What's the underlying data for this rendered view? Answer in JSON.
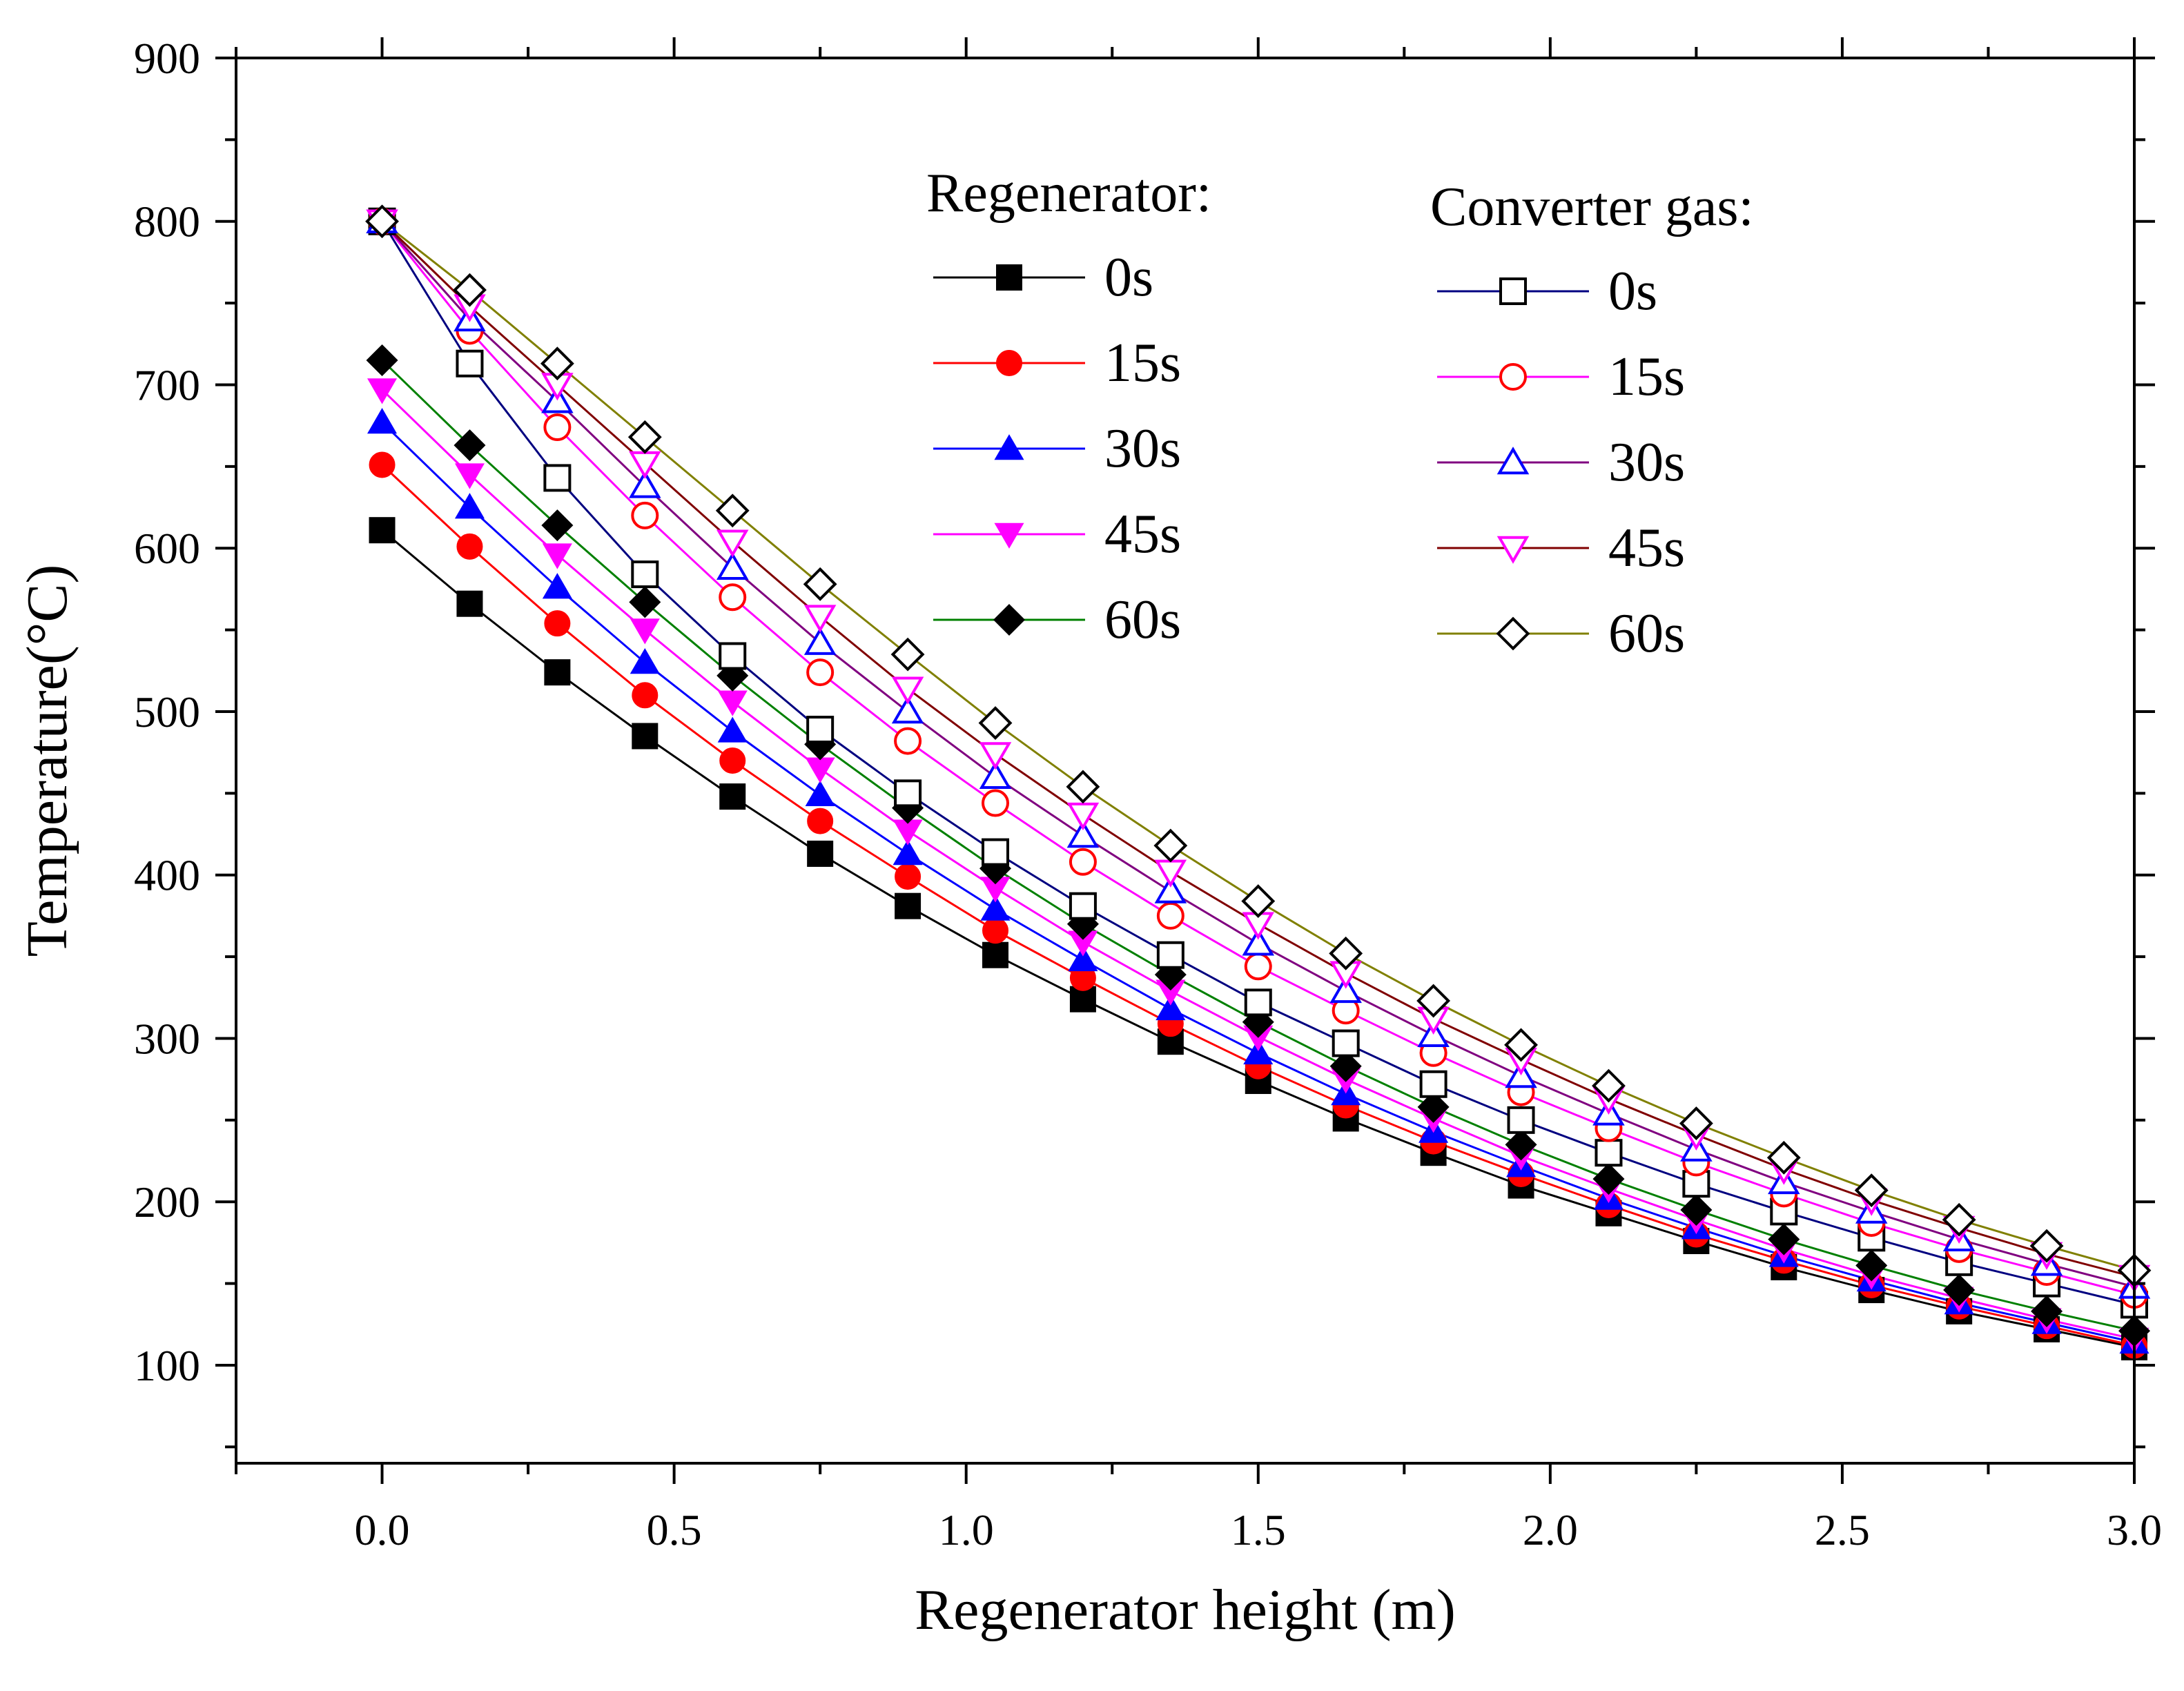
{
  "chart_data": {
    "type": "line",
    "title": "",
    "xlabel": "Regenerator height (m)",
    "ylabel": "Temperature(°C)",
    "xlim": [
      -0.25,
      3.0
    ],
    "ylim": [
      40,
      900
    ],
    "xticks": [
      0.0,
      0.5,
      1.0,
      1.5,
      2.0,
      2.5,
      3.0
    ],
    "xtick_labels": [
      "0.0",
      "0.5",
      "1.0",
      "1.5",
      "2.0",
      "2.5",
      "3.0"
    ],
    "yticks": [
      100,
      200,
      300,
      400,
      500,
      600,
      700,
      800,
      900
    ],
    "ytick_labels": [
      "100",
      "200",
      "300",
      "400",
      "500",
      "600",
      "700",
      "800",
      "900"
    ],
    "grid": false,
    "legend": {
      "placement": "top-right",
      "groups": [
        {
          "heading": "Regenerator:",
          "entries": [
            "0s",
            "15s",
            "30s",
            "45s",
            "60s"
          ]
        },
        {
          "heading": "Converter gas:",
          "entries": [
            "0s",
            "15s",
            "30s",
            "45s",
            "60s"
          ]
        }
      ]
    },
    "x": [
      0.0,
      0.15,
      0.3,
      0.45,
      0.6,
      0.75,
      0.9,
      1.05,
      1.2,
      1.35,
      1.5,
      1.65,
      1.8,
      1.95,
      2.1,
      2.25,
      2.4,
      2.55,
      2.7,
      2.85,
      3.0
    ],
    "series": [
      {
        "group": "Regenerator",
        "name": "0s",
        "marker": "square",
        "filled": true,
        "marker_color": "#000000",
        "line_color": "#000000",
        "values": [
          611,
          566,
          524,
          485,
          448,
          413,
          381,
          351,
          324,
          298,
          274,
          251,
          230,
          210,
          193,
          176,
          160,
          146,
          133,
          122,
          111
        ]
      },
      {
        "group": "Regenerator",
        "name": "15s",
        "marker": "circle",
        "filled": true,
        "marker_color": "#ff0000",
        "line_color": "#ff0000",
        "values": [
          651,
          601,
          554,
          510,
          470,
          433,
          399,
          366,
          337,
          309,
          283,
          259,
          237,
          217,
          198,
          180,
          164,
          149,
          136,
          124,
          112
        ]
      },
      {
        "group": "Regenerator",
        "name": "30s",
        "marker": "triangle-up",
        "filled": true,
        "marker_color": "#0000ff",
        "line_color": "#0000ff",
        "values": [
          677,
          625,
          576,
          530,
          488,
          449,
          413,
          379,
          348,
          318,
          291,
          266,
          243,
          222,
          202,
          184,
          167,
          152,
          138,
          126,
          114
        ]
      },
      {
        "group": "Regenerator",
        "name": "45s",
        "marker": "triangle-down",
        "filled": true,
        "marker_color": "#ff00ff",
        "line_color": "#ff00ff",
        "values": [
          697,
          645,
          596,
          550,
          506,
          465,
          427,
          392,
          359,
          329,
          301,
          275,
          251,
          228,
          208,
          189,
          171,
          155,
          141,
          128,
          116
        ]
      },
      {
        "group": "Regenerator",
        "name": "60s",
        "marker": "diamond",
        "filled": true,
        "marker_color": "#000000",
        "line_color": "#008000",
        "values": [
          715,
          663,
          614,
          567,
          522,
          480,
          441,
          404,
          370,
          339,
          310,
          283,
          258,
          235,
          214,
          195,
          177,
          161,
          146,
          133,
          121
        ]
      },
      {
        "group": "Converter gas",
        "name": "0s",
        "marker": "square",
        "filled": false,
        "marker_color": "#000000",
        "line_color": "#000080",
        "values": [
          800,
          713,
          643,
          584,
          534,
          489,
          450,
          414,
          381,
          351,
          322,
          297,
          272,
          250,
          230,
          211,
          194,
          178,
          163,
          150,
          137
        ]
      },
      {
        "group": "Converter gas",
        "name": "15s",
        "marker": "circle",
        "filled": false,
        "marker_color": "#ff0000",
        "line_color": "#ff00ff",
        "values": [
          800,
          733,
          674,
          620,
          570,
          524,
          482,
          444,
          408,
          375,
          344,
          317,
          291,
          267,
          245,
          224,
          205,
          187,
          171,
          157,
          143
        ]
      },
      {
        "group": "Converter gas",
        "name": "30s",
        "marker": "triangle-up",
        "filled": false,
        "marker_color": "#0000ff",
        "line_color": "#800080",
        "values": [
          800,
          740,
          690,
          638,
          588,
          542,
          500,
          460,
          424,
          390,
          358,
          329,
          302,
          277,
          254,
          232,
          212,
          194,
          177,
          162,
          148
        ]
      },
      {
        "group": "Converter gas",
        "name": "45s",
        "marker": "triangle-down",
        "filled": false,
        "marker_color": "#ff00ff",
        "line_color": "#800000",
        "values": [
          800,
          748,
          700,
          652,
          604,
          558,
          514,
          474,
          437,
          402,
          370,
          340,
          312,
          287,
          263,
          241,
          220,
          201,
          184,
          168,
          154
        ]
      },
      {
        "group": "Converter gas",
        "name": "60s",
        "marker": "diamond",
        "filled": false,
        "marker_color": "#000000",
        "line_color": "#808000",
        "values": [
          800,
          758,
          713,
          668,
          623,
          578,
          535,
          493,
          454,
          418,
          384,
          352,
          323,
          296,
          271,
          248,
          227,
          207,
          189,
          173,
          158
        ]
      }
    ]
  }
}
